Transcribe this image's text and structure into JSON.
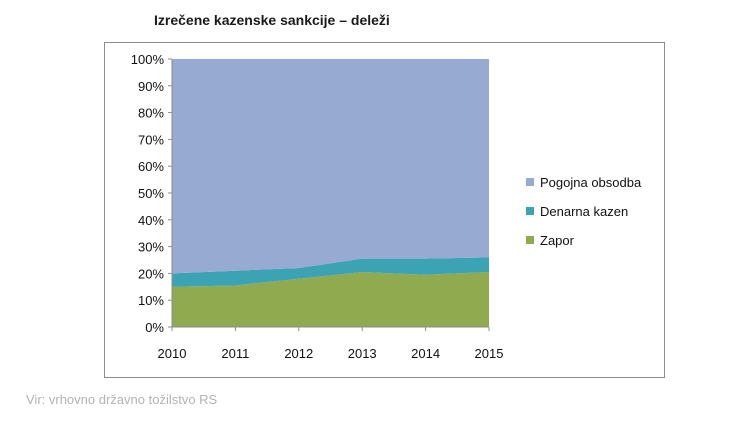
{
  "title": "Izrečene kazenske sankcije – deleži",
  "source": "Vir: vrhovno državno tožilstvo RS",
  "chart_data": {
    "type": "area",
    "stacked": true,
    "percent": true,
    "categories": [
      "2010",
      "2011",
      "2012",
      "2013",
      "2014",
      "2015"
    ],
    "ylim": [
      0,
      100
    ],
    "yticks": [
      "0%",
      "10%",
      "20%",
      "30%",
      "40%",
      "50%",
      "60%",
      "70%",
      "80%",
      "90%",
      "100%"
    ],
    "series": [
      {
        "name": "Zapor",
        "color": "#8faa4f",
        "values": [
          15,
          15.5,
          18,
          20.5,
          19.5,
          20.5
        ]
      },
      {
        "name": "Denarna kazen",
        "color": "#3ba3b4",
        "values": [
          5,
          5.5,
          4,
          5,
          6,
          5.5
        ]
      },
      {
        "name": "Pogojna obsodba",
        "color": "#96aad2",
        "values": [
          80,
          79,
          78,
          74.5,
          74.5,
          74
        ]
      }
    ],
    "legend_order": [
      "Pogojna obsodba",
      "Denarna kazen",
      "Zapor"
    ],
    "legend_position": "right",
    "grid": false
  }
}
